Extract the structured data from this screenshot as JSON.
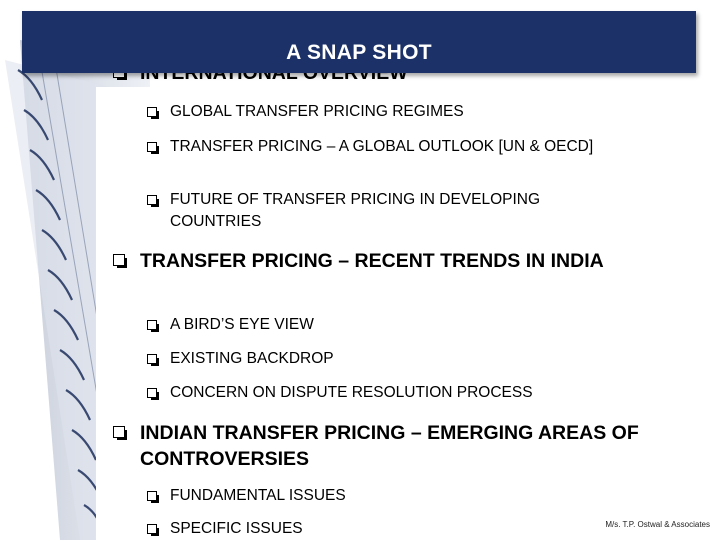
{
  "header": {
    "title": "A SNAP SHOT"
  },
  "sections": [
    {
      "heading": "INTERNATIONAL OVERVIEW",
      "items": [
        "GLOBAL TRANSFER PRICING REGIMES",
        "TRANSFER PRICING – A GLOBAL OUTLOOK [UN & OECD]",
        "FUTURE OF TRANSFER PRICING IN DEVELOPING COUNTRIES"
      ]
    },
    {
      "heading": "TRANSFER PRICING – RECENT TRENDS IN INDIA",
      "items": [
        "A BIRD’S EYE VIEW",
        "EXISTING BACKDROP",
        "CONCERN ON DISPUTE RESOLUTION PROCESS"
      ]
    },
    {
      "heading": "INDIAN TRANSFER PRICING – EMERGING AREAS OF CONTROVERSIES",
      "items": [
        "FUNDAMENTAL ISSUES",
        "SPECIFIC ISSUES"
      ]
    }
  ],
  "footer": {
    "brand": "M/s. T.P. Ostwal & Associates"
  },
  "colors": {
    "header_bg": "#1c3167",
    "header_text": "#ffffff",
    "text": "#000000"
  }
}
